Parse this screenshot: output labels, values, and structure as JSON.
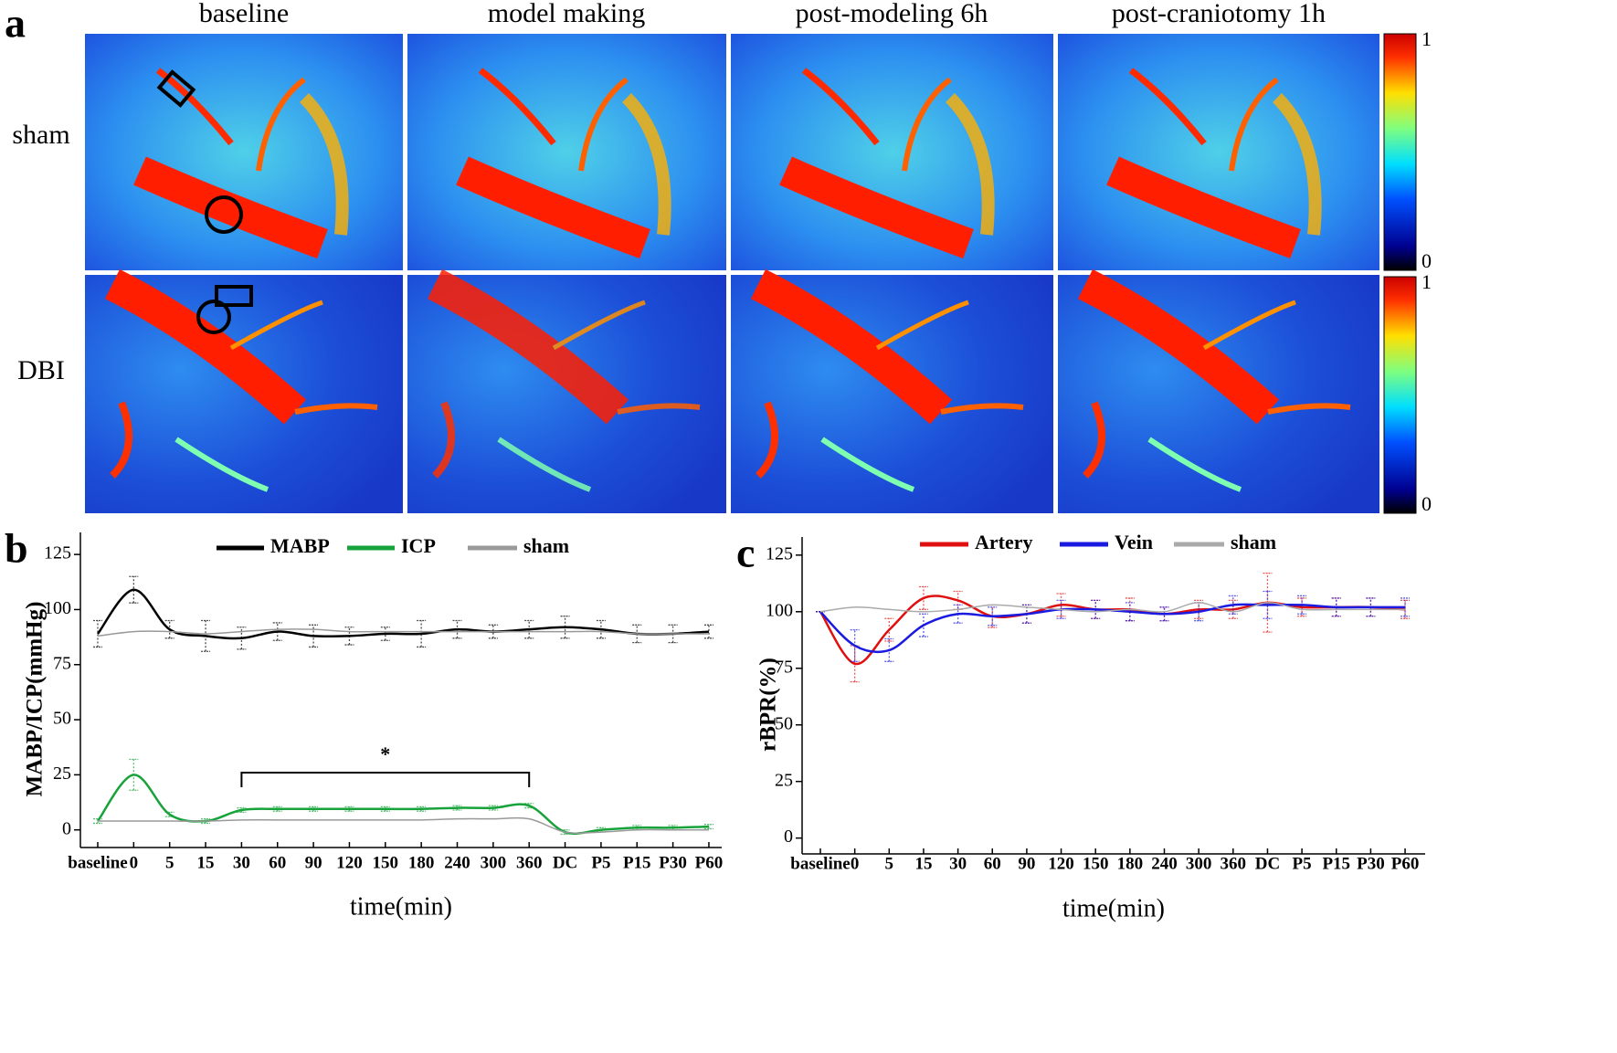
{
  "figure": {
    "panel": "a",
    "columns": [
      "baseline",
      "model making",
      "post-modeling 6h",
      "post-craniotomy 1h"
    ],
    "rows": [
      "sham",
      "DBI"
    ],
    "colorbar_ticks": [
      1,
      0
    ]
  },
  "chart_data": [
    {
      "type": "line",
      "panel": "b",
      "x_label": "time(min)",
      "y_label": "MABP/ICP(mmHg)",
      "categories": [
        "baseline",
        "0",
        "5",
        "15",
        "30",
        "60",
        "90",
        "120",
        "150",
        "180",
        "240",
        "300",
        "360",
        "DC",
        "P5",
        "P15",
        "P30",
        "P60"
      ],
      "ylim": [
        -8,
        135
      ],
      "yticks": [
        0,
        25,
        50,
        75,
        100,
        125
      ],
      "legend": "top",
      "series": [
        {
          "name": "MABP",
          "color": "#000000",
          "values": [
            89,
            109,
            91,
            88,
            87,
            90,
            88,
            88,
            89,
            89,
            91,
            90,
            91,
            92,
            91,
            89,
            89,
            90
          ],
          "errors": [
            6,
            6,
            4,
            7,
            5,
            4,
            5,
            4,
            3,
            6,
            4,
            3,
            4,
            5,
            4,
            4,
            4,
            3
          ]
        },
        {
          "name": "ICP",
          "color": "#17a33a",
          "values": [
            4,
            25,
            7,
            4,
            9,
            9.5,
            9.5,
            9.5,
            9.5,
            9.5,
            10,
            10,
            11,
            -1,
            0,
            1,
            1,
            1.5
          ],
          "errors": [
            1,
            7,
            1,
            1,
            1,
            1,
            1,
            1,
            1,
            1,
            1,
            1,
            1,
            1,
            1,
            1,
            1,
            1
          ]
        },
        {
          "name": "sham",
          "color": "#999999",
          "values": [
            88,
            90,
            90,
            89,
            90,
            91,
            91,
            90,
            90,
            90,
            90,
            90,
            90,
            90,
            90,
            89,
            89,
            89
          ]
        },
        {
          "name": "sham",
          "color": "#999999",
          "values": [
            4,
            4,
            4,
            4,
            4.5,
            4.5,
            4.5,
            4.5,
            4.5,
            4.5,
            5,
            5,
            5,
            -1,
            -1,
            0,
            0,
            0
          ]
        }
      ],
      "annotation": {
        "text": "*",
        "from": "30",
        "to": "360",
        "y": 26
      }
    },
    {
      "type": "line",
      "panel": "c",
      "x_label": "time(min)",
      "y_label": "rBPR(%)",
      "categories": [
        "baseline",
        "0",
        "5",
        "15",
        "30",
        "60",
        "90",
        "120",
        "150",
        "180",
        "240",
        "300",
        "360",
        "DC",
        "P5",
        "P15",
        "P30",
        "P60"
      ],
      "ylim": [
        -7,
        133
      ],
      "yticks": [
        0,
        25,
        50,
        75,
        100,
        125
      ],
      "legend": "top",
      "series": [
        {
          "name": "Artery",
          "color": "#e01010",
          "values": [
            100,
            77,
            92,
            106,
            105,
            98,
            99,
            103,
            101,
            101,
            99,
            101,
            101,
            104,
            102,
            102,
            102,
            101
          ],
          "errors": [
            0,
            8,
            5,
            5,
            4,
            5,
            4,
            5,
            4,
            5,
            3,
            4,
            4,
            13,
            4,
            4,
            4,
            4
          ]
        },
        {
          "name": "Vein",
          "color": "#1a1ae0",
          "values": [
            100,
            85,
            83,
            94,
            99,
            98,
            99,
            101,
            101,
            100,
            99,
            100,
            103,
            103,
            103,
            102,
            102,
            102
          ],
          "errors": [
            0,
            7,
            5,
            5,
            4,
            4,
            4,
            4,
            4,
            4,
            3,
            4,
            4,
            6,
            4,
            4,
            4,
            4
          ]
        },
        {
          "name": "sham",
          "color": "#aaaaaa",
          "values": [
            100,
            102,
            101,
            100,
            101,
            103,
            102,
            101,
            100,
            101,
            100,
            104,
            100,
            104,
            101,
            101,
            101,
            101
          ]
        }
      ]
    }
  ]
}
